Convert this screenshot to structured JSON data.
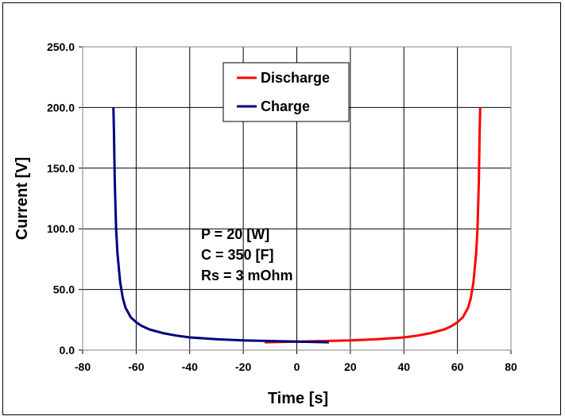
{
  "chart_data": {
    "type": "line",
    "xlabel": "Time [s]",
    "ylabel": "Current [V]",
    "xlim": [
      -80,
      80
    ],
    "ylim": [
      0,
      250
    ],
    "x_ticks": [
      "-80",
      "-60",
      "-40",
      "-20",
      "0",
      "20",
      "40",
      "60",
      "80"
    ],
    "y_ticks": [
      "0.0",
      "50.0",
      "100.0",
      "150.0",
      "200.0",
      "250.0"
    ],
    "grid": true,
    "legend_position": "top-center",
    "annotations": [
      "P = 20 [W]",
      "C = 350 [F]",
      "Rs = 3 mOhm"
    ],
    "series": [
      {
        "name": "Discharge",
        "color": "#ff0000",
        "x": [
          -12,
          -5,
          0,
          10,
          20,
          30,
          40,
          45,
          50,
          55,
          58,
          60,
          62,
          64,
          65,
          66,
          67,
          67.5,
          68,
          68.3,
          68.5
        ],
        "y": [
          6.5,
          6.8,
          7.0,
          7.5,
          8.0,
          9.0,
          10.5,
          12.0,
          14.0,
          17.0,
          20.0,
          23.0,
          27.0,
          35.0,
          43.0,
          56.0,
          80.0,
          100.0,
          140.0,
          180.0,
          200.0
        ]
      },
      {
        "name": "Charge",
        "color": "#000080",
        "x": [
          -68.5,
          -68.3,
          -68,
          -67.5,
          -67,
          -66,
          -65,
          -64,
          -62,
          -60,
          -58,
          -55,
          -50,
          -45,
          -40,
          -30,
          -20,
          -10,
          0,
          5,
          12
        ],
        "y": [
          200.0,
          180.0,
          140.0,
          100.0,
          80.0,
          56.0,
          43.0,
          35.0,
          27.0,
          23.0,
          20.0,
          17.0,
          14.0,
          12.0,
          10.5,
          9.0,
          8.0,
          7.5,
          7.0,
          6.8,
          6.5
        ]
      }
    ]
  }
}
